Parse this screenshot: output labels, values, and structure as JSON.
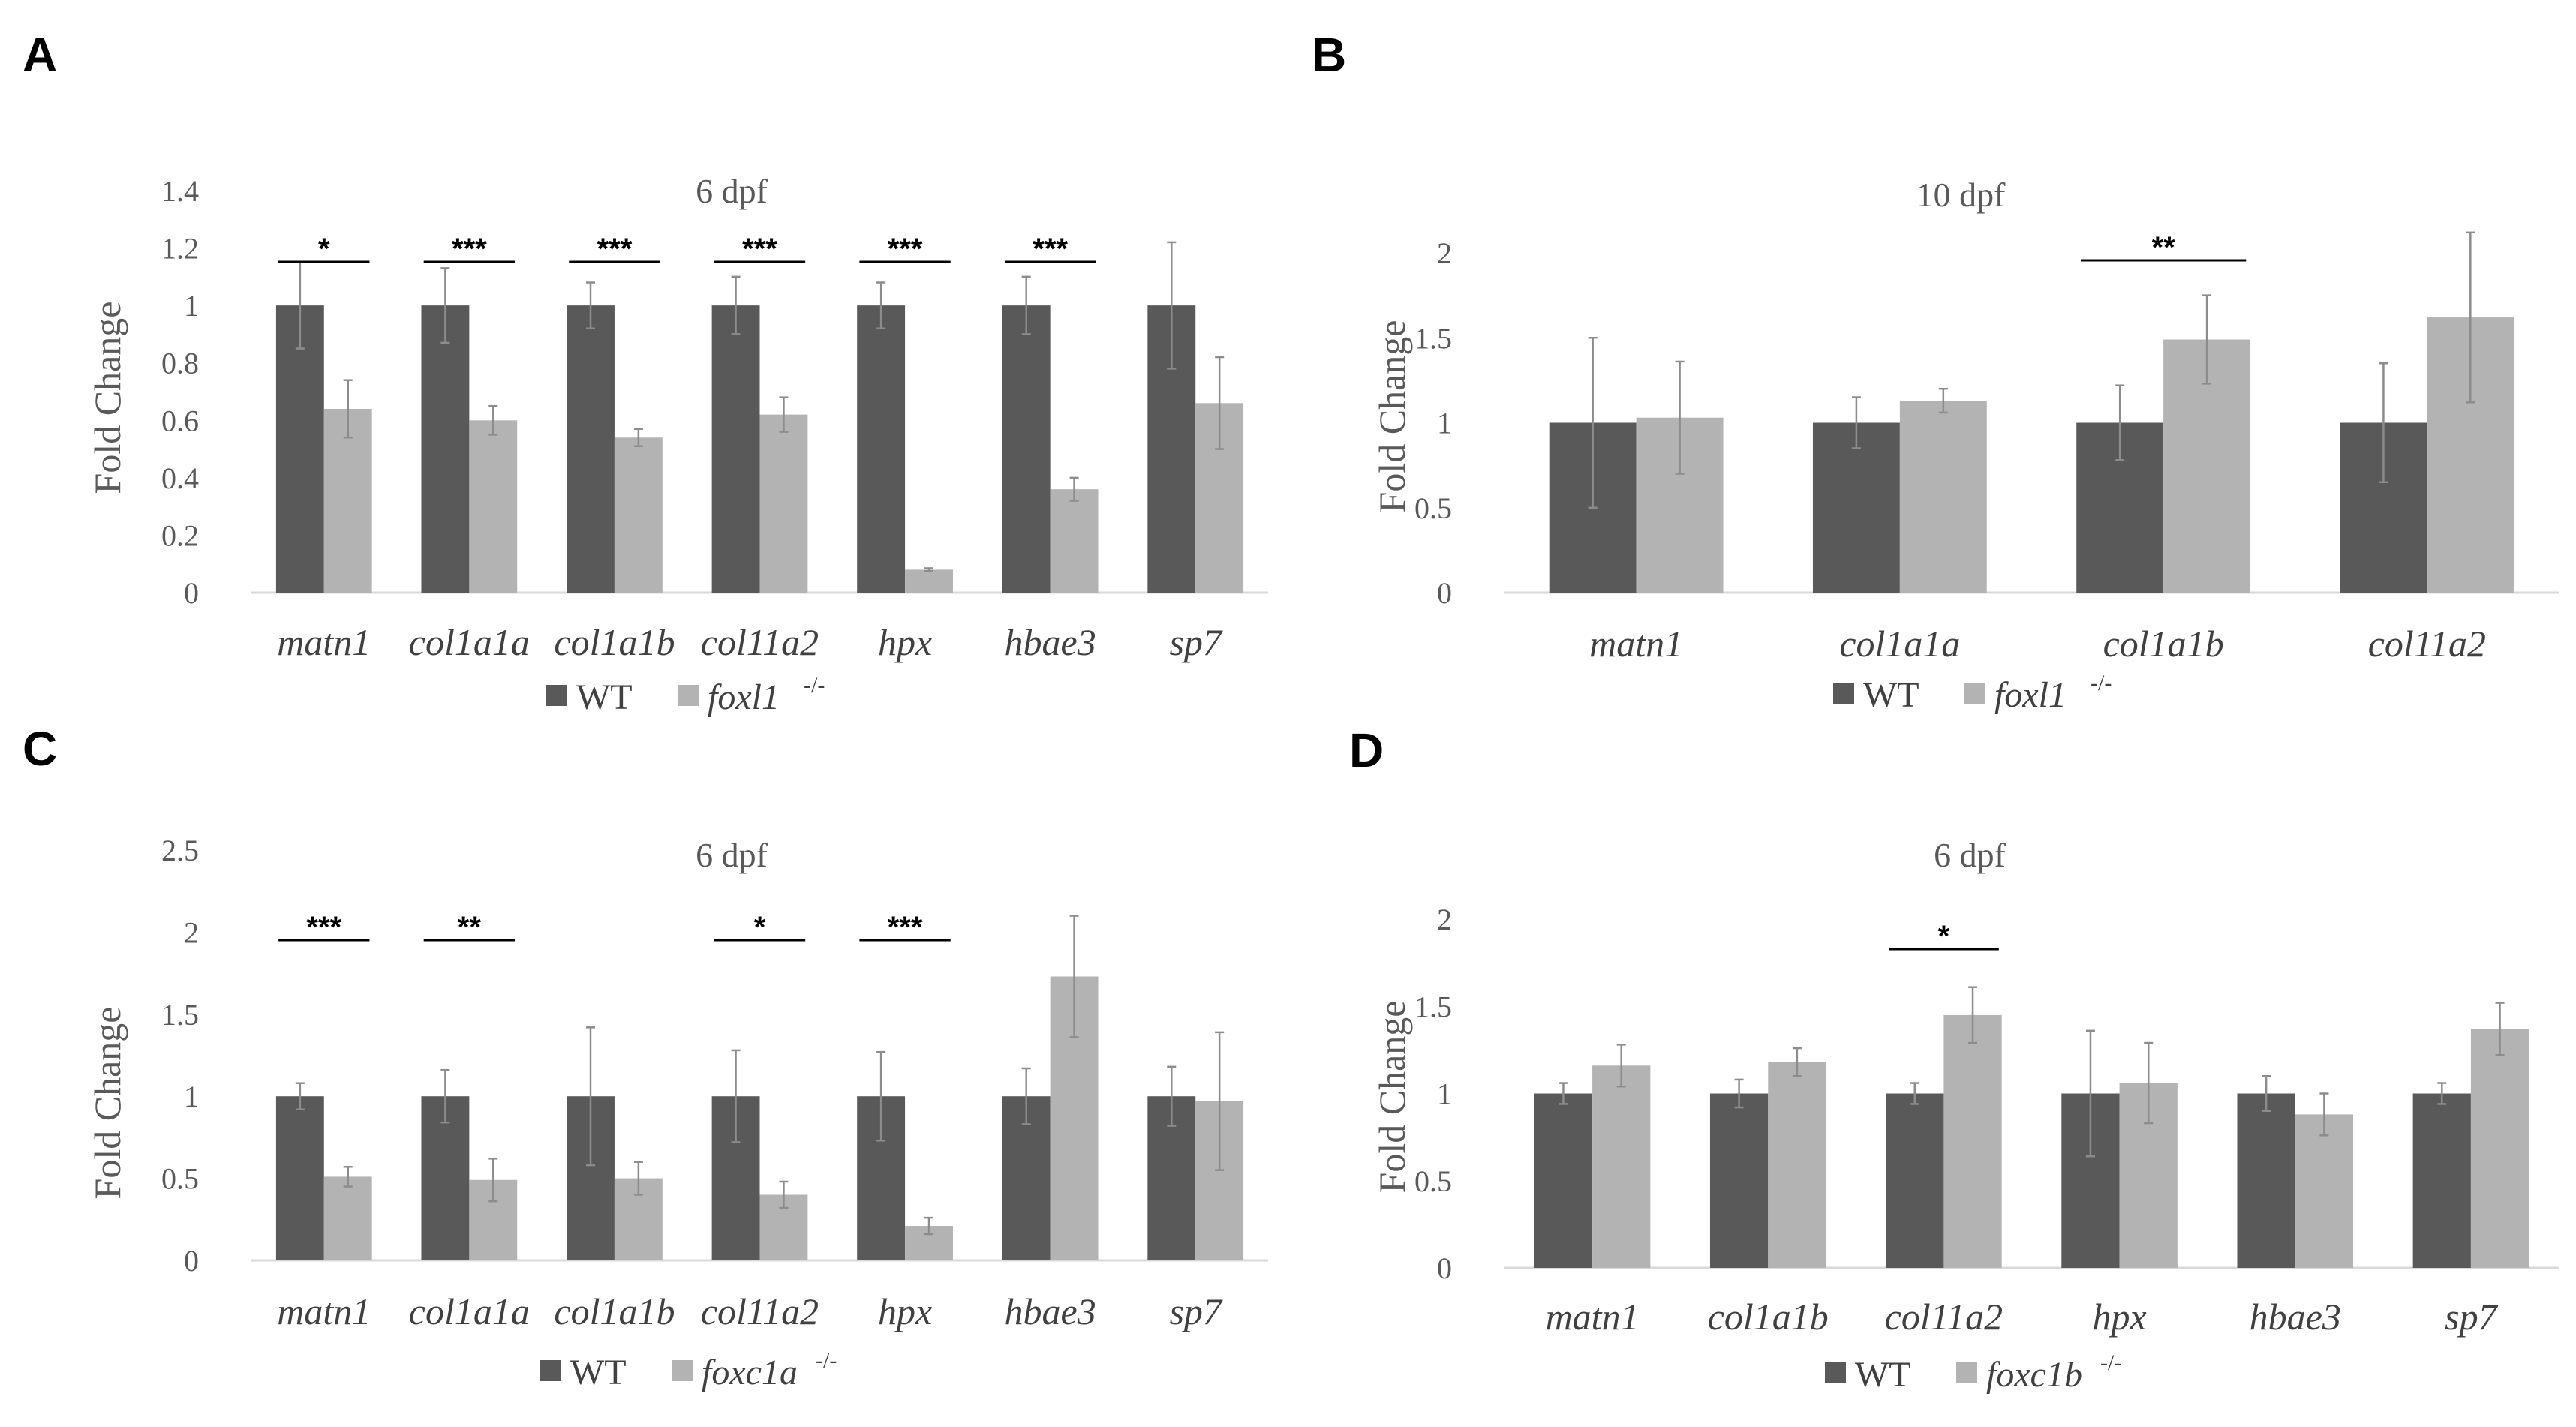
{
  "colors": {
    "wt": "#595959",
    "mutant": "#b3b3b3",
    "axis": "#d9d9d9",
    "err": "#8c8c8c"
  },
  "chart_data": [
    {
      "panel": "A",
      "type": "bar",
      "title": "6 dpf",
      "ylabel": "Fold Change",
      "xlabel": "",
      "ylim": [
        0,
        1.4
      ],
      "yticks": [
        "0",
        "0.2",
        "0.4",
        "0.6",
        "0.8",
        "1",
        "1.2",
        "1.4"
      ],
      "ytick_values": [
        0,
        0.2,
        0.4,
        0.6,
        0.8,
        1,
        1.2,
        1.4
      ],
      "grid": false,
      "legend_position": "bottom",
      "categories": [
        "matn1",
        "col1a1a",
        "col1a1b",
        "col11a2",
        "hpx",
        "hbae3",
        "sp7"
      ],
      "series": [
        {
          "name": "WT",
          "values": [
            1,
            1,
            1,
            1,
            1,
            1,
            1
          ],
          "errors": [
            0.15,
            0.13,
            0.08,
            0.1,
            0.08,
            0.1,
            0.22
          ]
        },
        {
          "name": "foxl1",
          "superscript": "-/-",
          "values": [
            0.64,
            0.6,
            0.54,
            0.62,
            0.08,
            0.36,
            0.66
          ],
          "errors": [
            0.1,
            0.05,
            0.03,
            0.06,
            0.005,
            0.04,
            0.16
          ]
        }
      ],
      "significance": [
        {
          "category": "matn1",
          "label": "*"
        },
        {
          "category": "col1a1a",
          "label": "***"
        },
        {
          "category": "col1a1b",
          "label": "***"
        },
        {
          "category": "col11a2",
          "label": "***"
        },
        {
          "category": "hpx",
          "label": "***"
        },
        {
          "category": "hbae3",
          "label": "***"
        }
      ]
    },
    {
      "panel": "B",
      "type": "bar",
      "title": "10 dpf",
      "ylabel": "Fold Change",
      "xlabel": "",
      "ylim": [
        0,
        2
      ],
      "yticks": [
        "0",
        "0.5",
        "1",
        "1.5",
        "2"
      ],
      "ytick_values": [
        0,
        0.5,
        1,
        1.5,
        2
      ],
      "grid": false,
      "legend_position": "bottom",
      "categories": [
        "matn1",
        "col1a1a",
        "col1a1b",
        "col11a2"
      ],
      "series": [
        {
          "name": "WT",
          "values": [
            1,
            1,
            1,
            1
          ],
          "errors": [
            0.5,
            0.15,
            0.22,
            0.35
          ]
        },
        {
          "name": "foxl1",
          "superscript": "-/-",
          "values": [
            1.03,
            1.13,
            1.49,
            1.62
          ],
          "errors": [
            0.33,
            0.07,
            0.26,
            0.5
          ]
        }
      ],
      "significance": [
        {
          "category": "col1a1b",
          "label": "**"
        }
      ]
    },
    {
      "panel": "C",
      "type": "bar",
      "title": "6 dpf",
      "ylabel": "Fold Change",
      "xlabel": "",
      "ylim": [
        0,
        2.5
      ],
      "yticks": [
        "0",
        "0.5",
        "1",
        "1.5",
        "2",
        "2.5"
      ],
      "ytick_values": [
        0,
        0.5,
        1,
        1.5,
        2,
        2.5
      ],
      "grid": false,
      "legend_position": "bottom",
      "categories": [
        "matn1",
        "col1a1a",
        "col1a1b",
        "col11a2",
        "hpx",
        "hbae3",
        "sp7"
      ],
      "series": [
        {
          "name": "WT",
          "values": [
            1,
            1,
            1,
            1,
            1,
            1,
            1
          ],
          "errors": [
            0.08,
            0.16,
            0.42,
            0.28,
            0.27,
            0.17,
            0.18
          ]
        },
        {
          "name": "foxc1a",
          "superscript": "-/-",
          "values": [
            0.51,
            0.49,
            0.5,
            0.4,
            0.21,
            1.73,
            0.97
          ],
          "errors": [
            0.06,
            0.13,
            0.1,
            0.08,
            0.05,
            0.37,
            0.42
          ]
        }
      ],
      "significance": [
        {
          "category": "matn1",
          "label": "***"
        },
        {
          "category": "col1a1a",
          "label": "**"
        },
        {
          "category": "col11a2",
          "label": "*"
        },
        {
          "category": "hpx",
          "label": "***"
        }
      ]
    },
    {
      "panel": "D",
      "type": "bar",
      "title": "6 dpf",
      "ylabel": "Fold Change",
      "xlabel": "",
      "ylim": [
        0,
        2
      ],
      "yticks": [
        "0",
        "0.5",
        "1",
        "1.5",
        "2"
      ],
      "ytick_values": [
        0,
        0.5,
        1,
        1.5,
        2
      ],
      "grid": false,
      "legend_position": "bottom",
      "categories": [
        "matn1",
        "col1a1b",
        "col11a2",
        "hpx",
        "hbae3",
        "sp7"
      ],
      "series": [
        {
          "name": "WT",
          "values": [
            1,
            1,
            1,
            1,
            1,
            1
          ],
          "errors": [
            0.06,
            0.08,
            0.06,
            0.36,
            0.1,
            0.06
          ]
        },
        {
          "name": "foxc1b",
          "superscript": "-/-",
          "values": [
            1.16,
            1.18,
            1.45,
            1.06,
            0.88,
            1.37
          ],
          "errors": [
            0.12,
            0.08,
            0.16,
            0.23,
            0.12,
            0.15
          ]
        }
      ],
      "significance": [
        {
          "category": "col11a2",
          "label": "*"
        }
      ]
    }
  ]
}
